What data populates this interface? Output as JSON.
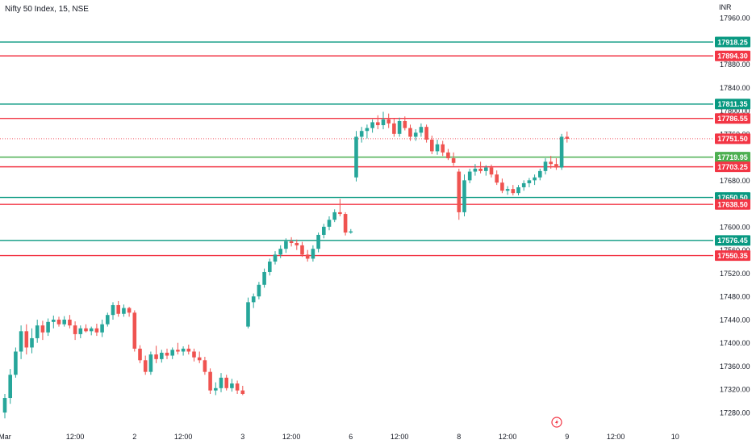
{
  "header": {
    "title": "Nifty 50 Index, 15, NSE"
  },
  "axis": {
    "currency": "INR"
  },
  "colors": {
    "up": "#26a69a",
    "down": "#ef5350",
    "green_line": "#089981",
    "red_line": "#f23645",
    "bright_green": "#4caf50",
    "axis_text": "#131722",
    "grid_dots": "#f23645"
  },
  "chart_data": {
    "type": "candlestick",
    "title": "Nifty 50 Index, 15, NSE",
    "ylim": [
      17260,
      17980
    ],
    "y_ticks": [
      17960,
      17880,
      17840,
      17800,
      17760,
      17680,
      17600,
      17560,
      17520,
      17480,
      17440,
      17400,
      17360,
      17320,
      17280
    ],
    "x_ticks": [
      {
        "label": "Mar",
        "bar": 0
      },
      {
        "label": "12:00",
        "bar": 13
      },
      {
        "label": "2",
        "bar": 24
      },
      {
        "label": "12:00",
        "bar": 33
      },
      {
        "label": "3",
        "bar": 44
      },
      {
        "label": "12:00",
        "bar": 53
      },
      {
        "label": "6",
        "bar": 64
      },
      {
        "label": "12:00",
        "bar": 73
      },
      {
        "label": "8",
        "bar": 84
      },
      {
        "label": "12:00",
        "bar": 93
      },
      {
        "label": "9",
        "bar": 104
      },
      {
        "label": "12:00",
        "bar": 113
      },
      {
        "label": "10",
        "bar": 124
      }
    ],
    "levels": [
      {
        "value": 17918.25,
        "label": "17918.25",
        "kind": "green"
      },
      {
        "value": 17894.3,
        "label": "17894.30",
        "kind": "red"
      },
      {
        "value": 17811.35,
        "label": "17811.35",
        "kind": "green"
      },
      {
        "value": 17786.55,
        "label": "17786.55",
        "kind": "red"
      },
      {
        "value": 17719.95,
        "label": "17719.95",
        "kind": "bright"
      },
      {
        "value": 17703.25,
        "label": "17703.25",
        "kind": "red"
      },
      {
        "value": 17650.5,
        "label": "17650.50",
        "kind": "green"
      },
      {
        "value": 17638.5,
        "label": "17638.50",
        "kind": "red"
      },
      {
        "value": 17576.45,
        "label": "17576.45",
        "kind": "green"
      },
      {
        "value": 17550.35,
        "label": "17550.35",
        "kind": "red"
      }
    ],
    "last_price": {
      "value": 17751.5,
      "label": "17751.50"
    },
    "candles": [
      {
        "o": 17280,
        "h": 17312,
        "l": 17270,
        "c": 17305
      },
      {
        "o": 17305,
        "h": 17355,
        "l": 17295,
        "c": 17345
      },
      {
        "o": 17345,
        "h": 17392,
        "l": 17340,
        "c": 17385
      },
      {
        "o": 17385,
        "h": 17430,
        "l": 17372,
        "c": 17420
      },
      {
        "o": 17420,
        "h": 17432,
        "l": 17380,
        "c": 17392
      },
      {
        "o": 17392,
        "h": 17425,
        "l": 17382,
        "c": 17408
      },
      {
        "o": 17408,
        "h": 17440,
        "l": 17400,
        "c": 17430
      },
      {
        "o": 17430,
        "h": 17438,
        "l": 17405,
        "c": 17418
      },
      {
        "o": 17418,
        "h": 17442,
        "l": 17412,
        "c": 17436
      },
      {
        "o": 17436,
        "h": 17447,
        "l": 17425,
        "c": 17440
      },
      {
        "o": 17440,
        "h": 17445,
        "l": 17428,
        "c": 17432
      },
      {
        "o": 17432,
        "h": 17446,
        "l": 17428,
        "c": 17440
      },
      {
        "o": 17440,
        "h": 17448,
        "l": 17425,
        "c": 17430
      },
      {
        "o": 17430,
        "h": 17437,
        "l": 17405,
        "c": 17415
      },
      {
        "o": 17415,
        "h": 17430,
        "l": 17408,
        "c": 17425
      },
      {
        "o": 17425,
        "h": 17432,
        "l": 17418,
        "c": 17420
      },
      {
        "o": 17420,
        "h": 17428,
        "l": 17413,
        "c": 17425
      },
      {
        "o": 17425,
        "h": 17433,
        "l": 17412,
        "c": 17418
      },
      {
        "o": 17418,
        "h": 17440,
        "l": 17410,
        "c": 17432
      },
      {
        "o": 17432,
        "h": 17452,
        "l": 17428,
        "c": 17448
      },
      {
        "o": 17448,
        "h": 17470,
        "l": 17440,
        "c": 17465
      },
      {
        "o": 17465,
        "h": 17472,
        "l": 17445,
        "c": 17450
      },
      {
        "o": 17450,
        "h": 17466,
        "l": 17445,
        "c": 17460
      },
      {
        "o": 17460,
        "h": 17462,
        "l": 17445,
        "c": 17452
      },
      {
        "o": 17452,
        "h": 17456,
        "l": 17385,
        "c": 17390
      },
      {
        "o": 17390,
        "h": 17396,
        "l": 17365,
        "c": 17370
      },
      {
        "o": 17370,
        "h": 17378,
        "l": 17345,
        "c": 17350
      },
      {
        "o": 17350,
        "h": 17385,
        "l": 17345,
        "c": 17380
      },
      {
        "o": 17380,
        "h": 17395,
        "l": 17365,
        "c": 17372
      },
      {
        "o": 17372,
        "h": 17388,
        "l": 17366,
        "c": 17383
      },
      {
        "o": 17383,
        "h": 17390,
        "l": 17372,
        "c": 17378
      },
      {
        "o": 17378,
        "h": 17392,
        "l": 17372,
        "c": 17388
      },
      {
        "o": 17388,
        "h": 17400,
        "l": 17380,
        "c": 17385
      },
      {
        "o": 17385,
        "h": 17394,
        "l": 17378,
        "c": 17390
      },
      {
        "o": 17390,
        "h": 17397,
        "l": 17380,
        "c": 17385
      },
      {
        "o": 17385,
        "h": 17390,
        "l": 17368,
        "c": 17375
      },
      {
        "o": 17375,
        "h": 17385,
        "l": 17365,
        "c": 17370
      },
      {
        "o": 17370,
        "h": 17376,
        "l": 17345,
        "c": 17350
      },
      {
        "o": 17350,
        "h": 17356,
        "l": 17312,
        "c": 17318
      },
      {
        "o": 17318,
        "h": 17332,
        "l": 17310,
        "c": 17322
      },
      {
        "o": 17322,
        "h": 17348,
        "l": 17315,
        "c": 17340
      },
      {
        "o": 17340,
        "h": 17345,
        "l": 17318,
        "c": 17322
      },
      {
        "o": 17322,
        "h": 17338,
        "l": 17316,
        "c": 17330
      },
      {
        "o": 17330,
        "h": 17335,
        "l": 17312,
        "c": 17318
      },
      {
        "o": 17318,
        "h": 17326,
        "l": 17310,
        "c": 17312
      },
      {
        "o": 17428,
        "h": 17478,
        "l": 17425,
        "c": 17470
      },
      {
        "o": 17470,
        "h": 17485,
        "l": 17460,
        "c": 17480
      },
      {
        "o": 17480,
        "h": 17505,
        "l": 17475,
        "c": 17500
      },
      {
        "o": 17500,
        "h": 17528,
        "l": 17495,
        "c": 17522
      },
      {
        "o": 17522,
        "h": 17545,
        "l": 17516,
        "c": 17540
      },
      {
        "o": 17540,
        "h": 17558,
        "l": 17535,
        "c": 17552
      },
      {
        "o": 17552,
        "h": 17568,
        "l": 17546,
        "c": 17562
      },
      {
        "o": 17562,
        "h": 17580,
        "l": 17555,
        "c": 17575
      },
      {
        "o": 17575,
        "h": 17582,
        "l": 17566,
        "c": 17572
      },
      {
        "o": 17572,
        "h": 17578,
        "l": 17560,
        "c": 17568
      },
      {
        "o": 17568,
        "h": 17574,
        "l": 17548,
        "c": 17552
      },
      {
        "o": 17552,
        "h": 17560,
        "l": 17540,
        "c": 17545
      },
      {
        "o": 17545,
        "h": 17568,
        "l": 17540,
        "c": 17562
      },
      {
        "o": 17562,
        "h": 17590,
        "l": 17556,
        "c": 17586
      },
      {
        "o": 17586,
        "h": 17605,
        "l": 17580,
        "c": 17600
      },
      {
        "o": 17600,
        "h": 17618,
        "l": 17594,
        "c": 17612
      },
      {
        "o": 17612,
        "h": 17630,
        "l": 17608,
        "c": 17625
      },
      {
        "o": 17625,
        "h": 17648,
        "l": 17618,
        "c": 17622
      },
      {
        "o": 17622,
        "h": 17625,
        "l": 17585,
        "c": 17590
      },
      {
        "o": 17590,
        "h": 17596,
        "l": 17588,
        "c": 17592
      },
      {
        "o": 17685,
        "h": 17765,
        "l": 17678,
        "c": 17755
      },
      {
        "o": 17755,
        "h": 17772,
        "l": 17745,
        "c": 17765
      },
      {
        "o": 17765,
        "h": 17776,
        "l": 17752,
        "c": 17770
      },
      {
        "o": 17770,
        "h": 17785,
        "l": 17762,
        "c": 17780
      },
      {
        "o": 17780,
        "h": 17792,
        "l": 17768,
        "c": 17775
      },
      {
        "o": 17775,
        "h": 17798,
        "l": 17768,
        "c": 17785
      },
      {
        "o": 17785,
        "h": 17795,
        "l": 17770,
        "c": 17778
      },
      {
        "o": 17778,
        "h": 17786,
        "l": 17755,
        "c": 17760
      },
      {
        "o": 17760,
        "h": 17788,
        "l": 17755,
        "c": 17782
      },
      {
        "o": 17782,
        "h": 17790,
        "l": 17766,
        "c": 17770
      },
      {
        "o": 17770,
        "h": 17776,
        "l": 17748,
        "c": 17755
      },
      {
        "o": 17755,
        "h": 17768,
        "l": 17748,
        "c": 17762
      },
      {
        "o": 17762,
        "h": 17778,
        "l": 17755,
        "c": 17772
      },
      {
        "o": 17772,
        "h": 17776,
        "l": 17745,
        "c": 17750
      },
      {
        "o": 17750,
        "h": 17757,
        "l": 17725,
        "c": 17730
      },
      {
        "o": 17730,
        "h": 17750,
        "l": 17724,
        "c": 17742
      },
      {
        "o": 17742,
        "h": 17748,
        "l": 17722,
        "c": 17728
      },
      {
        "o": 17728,
        "h": 17734,
        "l": 17715,
        "c": 17718
      },
      {
        "o": 17718,
        "h": 17728,
        "l": 17705,
        "c": 17710
      },
      {
        "o": 17695,
        "h": 17700,
        "l": 17612,
        "c": 17625
      },
      {
        "o": 17625,
        "h": 17690,
        "l": 17618,
        "c": 17680
      },
      {
        "o": 17680,
        "h": 17700,
        "l": 17675,
        "c": 17695
      },
      {
        "o": 17695,
        "h": 17708,
        "l": 17688,
        "c": 17700
      },
      {
        "o": 17700,
        "h": 17712,
        "l": 17692,
        "c": 17696
      },
      {
        "o": 17696,
        "h": 17706,
        "l": 17688,
        "c": 17702
      },
      {
        "o": 17702,
        "h": 17707,
        "l": 17685,
        "c": 17690
      },
      {
        "o": 17690,
        "h": 17697,
        "l": 17672,
        "c": 17676
      },
      {
        "o": 17676,
        "h": 17683,
        "l": 17658,
        "c": 17662
      },
      {
        "o": 17662,
        "h": 17670,
        "l": 17655,
        "c": 17665
      },
      {
        "o": 17665,
        "h": 17672,
        "l": 17654,
        "c": 17658
      },
      {
        "o": 17658,
        "h": 17672,
        "l": 17654,
        "c": 17668
      },
      {
        "o": 17668,
        "h": 17680,
        "l": 17662,
        "c": 17675
      },
      {
        "o": 17675,
        "h": 17684,
        "l": 17668,
        "c": 17680
      },
      {
        "o": 17680,
        "h": 17690,
        "l": 17672,
        "c": 17685
      },
      {
        "o": 17685,
        "h": 17700,
        "l": 17680,
        "c": 17696
      },
      {
        "o": 17696,
        "h": 17718,
        "l": 17690,
        "c": 17712
      },
      {
        "o": 17712,
        "h": 17722,
        "l": 17700,
        "c": 17708
      },
      {
        "o": 17708,
        "h": 17718,
        "l": 17698,
        "c": 17702
      },
      {
        "o": 17702,
        "h": 17760,
        "l": 17698,
        "c": 17755
      },
      {
        "o": 17755,
        "h": 17764,
        "l": 17745,
        "c": 17751.5
      }
    ]
  }
}
